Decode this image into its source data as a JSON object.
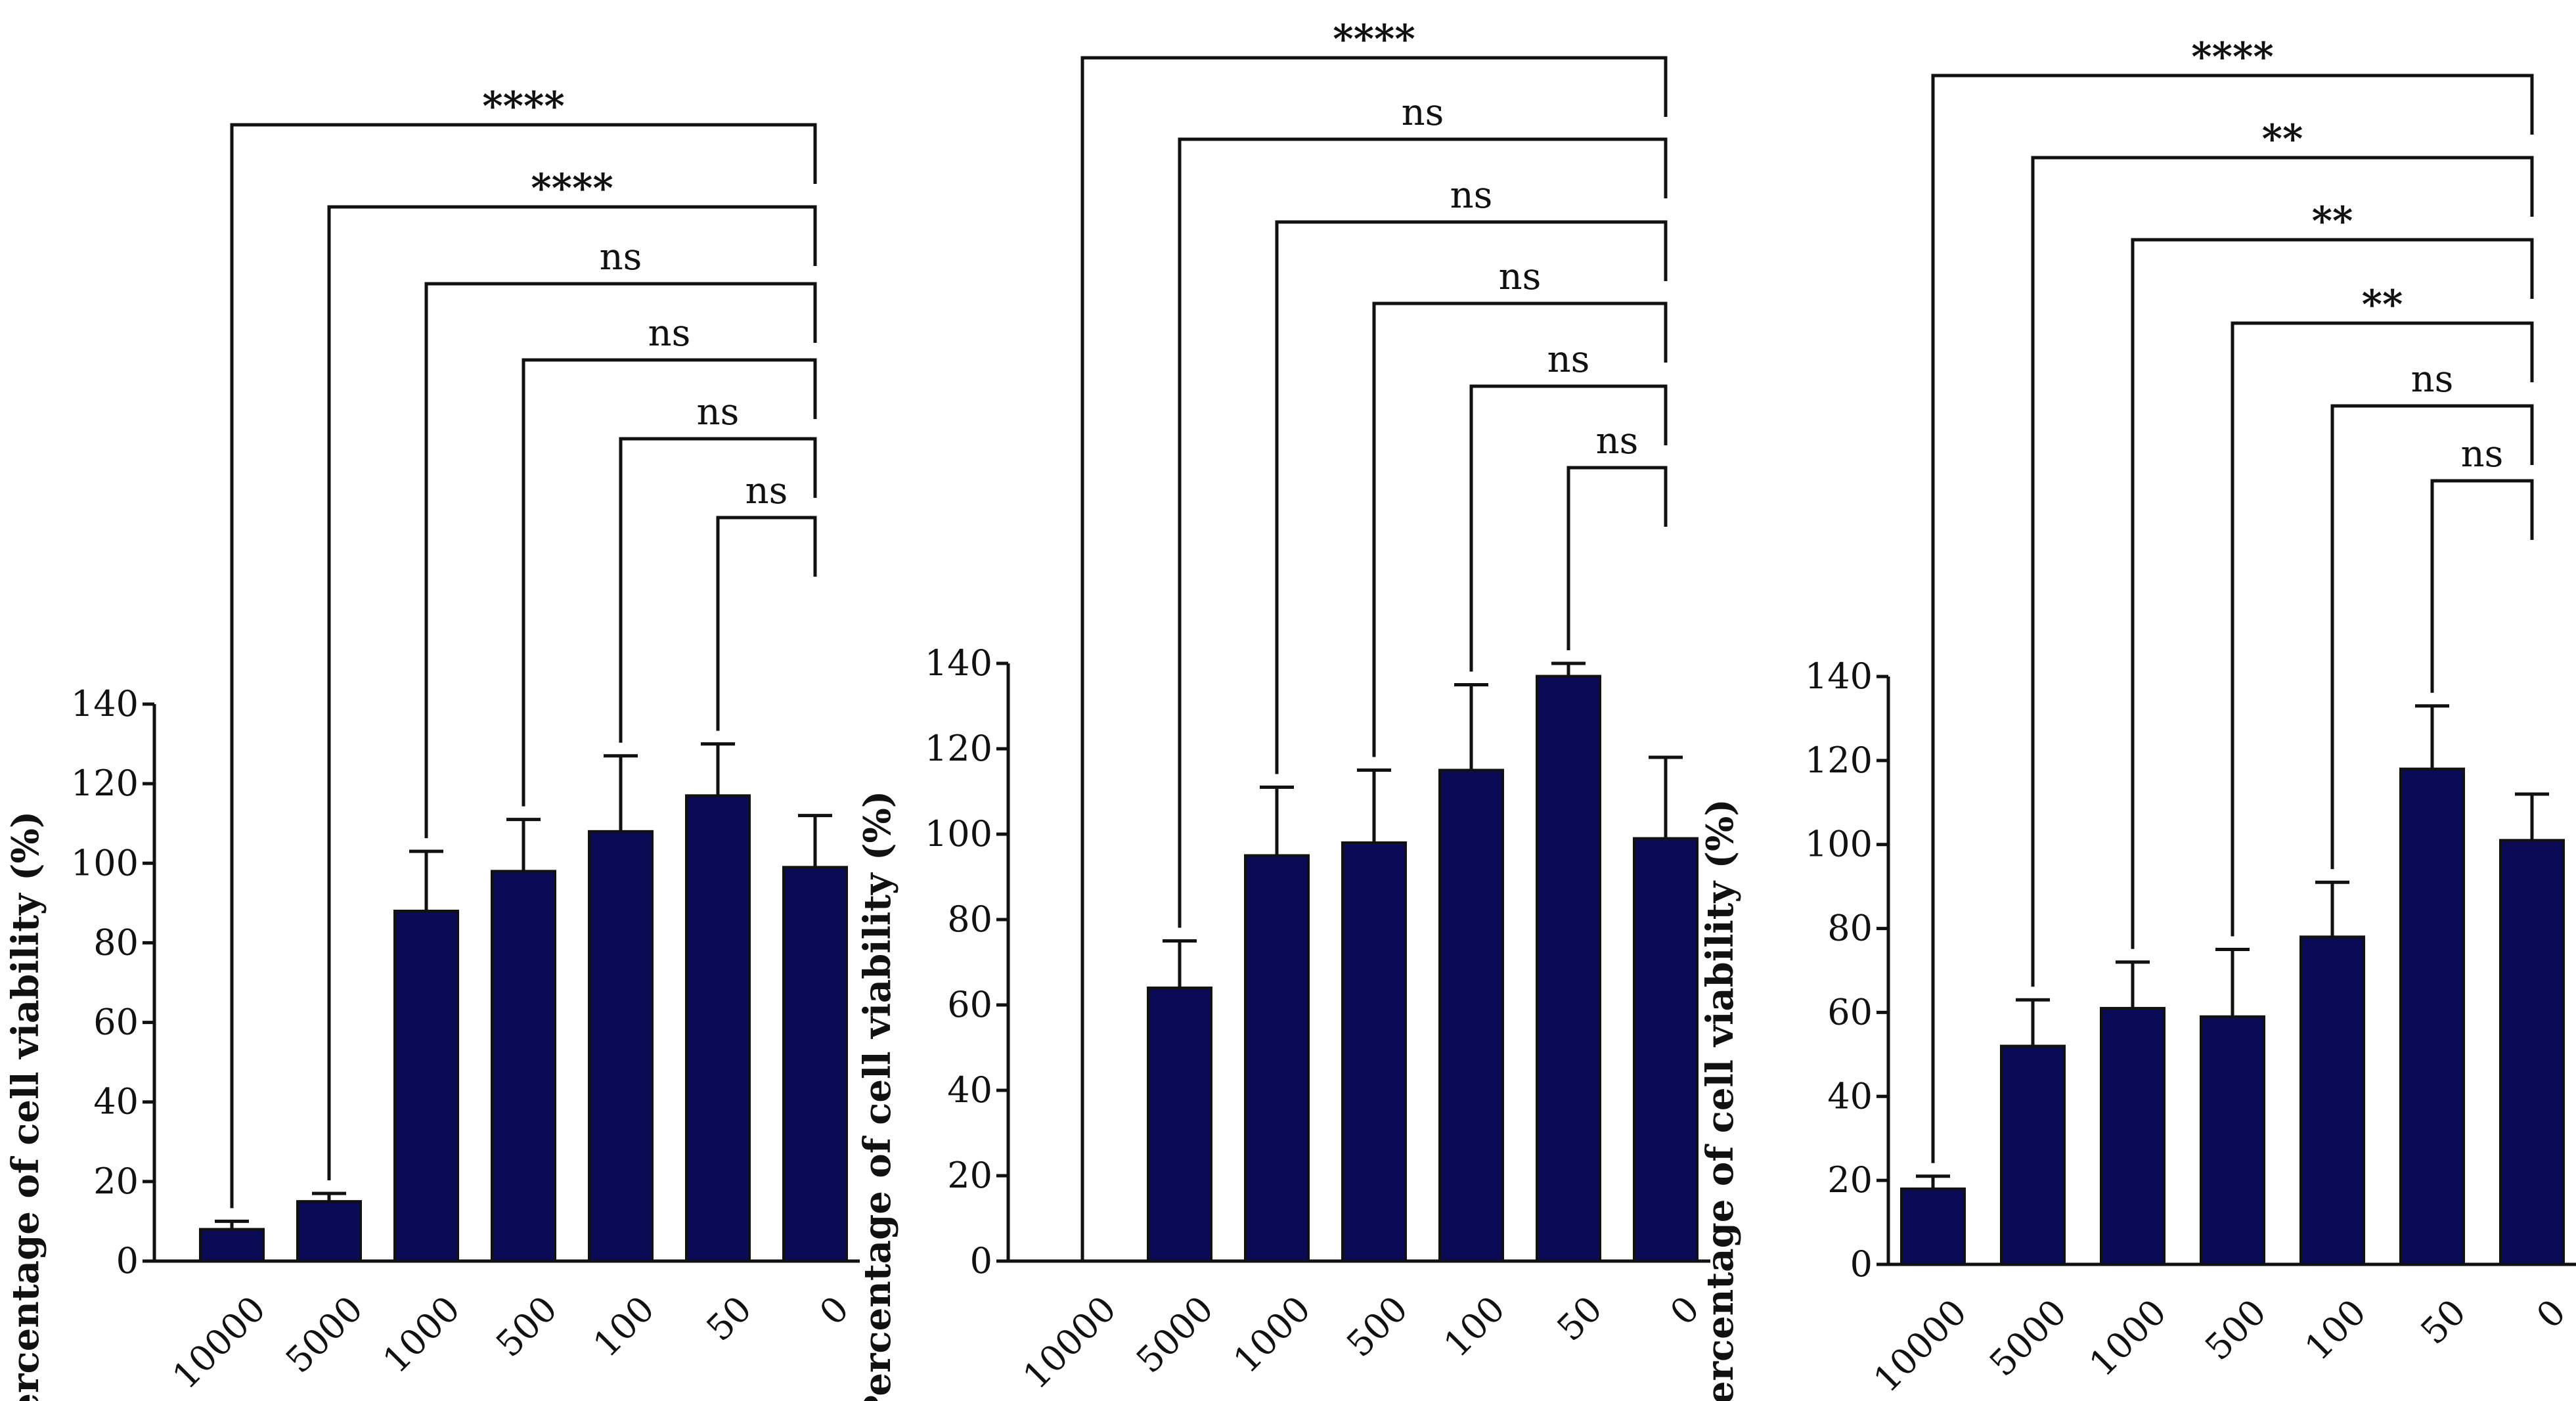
{
  "chart_data": [
    {
      "type": "bar",
      "ylabel": "Percentage of cell viability (%)",
      "xlabel": "",
      "ylim": [
        0,
        140
      ],
      "yticks": [
        0,
        20,
        40,
        60,
        80,
        100,
        120,
        140
      ],
      "categories": [
        "10000",
        "5000",
        "1000",
        "500",
        "100",
        "50",
        "0"
      ],
      "values": [
        8,
        15,
        88,
        98,
        108,
        117,
        99
      ],
      "errors": [
        2,
        2,
        15,
        13,
        19,
        13,
        13
      ],
      "bar_color": "#0b0b55",
      "comparisons": [
        {
          "from": "10000",
          "to": "0",
          "label": "****"
        },
        {
          "from": "5000",
          "to": "0",
          "label": "****"
        },
        {
          "from": "1000",
          "to": "0",
          "label": "ns"
        },
        {
          "from": "500",
          "to": "0",
          "label": "ns"
        },
        {
          "from": "100",
          "to": "0",
          "label": "ns"
        },
        {
          "from": "50",
          "to": "0",
          "label": "ns"
        }
      ]
    },
    {
      "type": "bar",
      "ylabel": "Percentage of cell viability (%)",
      "xlabel": "",
      "ylim": [
        0,
        140
      ],
      "yticks": [
        0,
        20,
        40,
        60,
        80,
        100,
        120,
        140
      ],
      "categories": [
        "10000",
        "5000",
        "1000",
        "500",
        "100",
        "50",
        "0"
      ],
      "values": [
        0,
        64,
        95,
        98,
        115,
        137,
        99
      ],
      "errors": [
        0,
        11,
        16,
        17,
        20,
        3,
        19
      ],
      "bar_color": "#0b0b55",
      "comparisons": [
        {
          "from": "10000",
          "to": "0",
          "label": "****"
        },
        {
          "from": "5000",
          "to": "0",
          "label": "ns"
        },
        {
          "from": "1000",
          "to": "0",
          "label": "ns"
        },
        {
          "from": "500",
          "to": "0",
          "label": "ns"
        },
        {
          "from": "100",
          "to": "0",
          "label": "ns"
        },
        {
          "from": "50",
          "to": "0",
          "label": "ns"
        }
      ]
    },
    {
      "type": "bar",
      "ylabel": "Percentage of cell viability (%)",
      "xlabel": "",
      "ylim": [
        0,
        140
      ],
      "yticks": [
        0,
        20,
        40,
        60,
        80,
        100,
        120,
        140
      ],
      "categories": [
        "10000",
        "5000",
        "1000",
        "500",
        "100",
        "50",
        "0"
      ],
      "values": [
        18,
        52,
        61,
        59,
        78,
        118,
        101
      ],
      "errors": [
        3,
        11,
        11,
        16,
        13,
        15,
        11
      ],
      "bar_color": "#0b0b55",
      "comparisons": [
        {
          "from": "10000",
          "to": "0",
          "label": "****"
        },
        {
          "from": "5000",
          "to": "0",
          "label": "**"
        },
        {
          "from": "1000",
          "to": "0",
          "label": "**"
        },
        {
          "from": "500",
          "to": "0",
          "label": "**"
        },
        {
          "from": "100",
          "to": "0",
          "label": "ns"
        },
        {
          "from": "50",
          "to": "0",
          "label": "ns"
        }
      ]
    }
  ]
}
